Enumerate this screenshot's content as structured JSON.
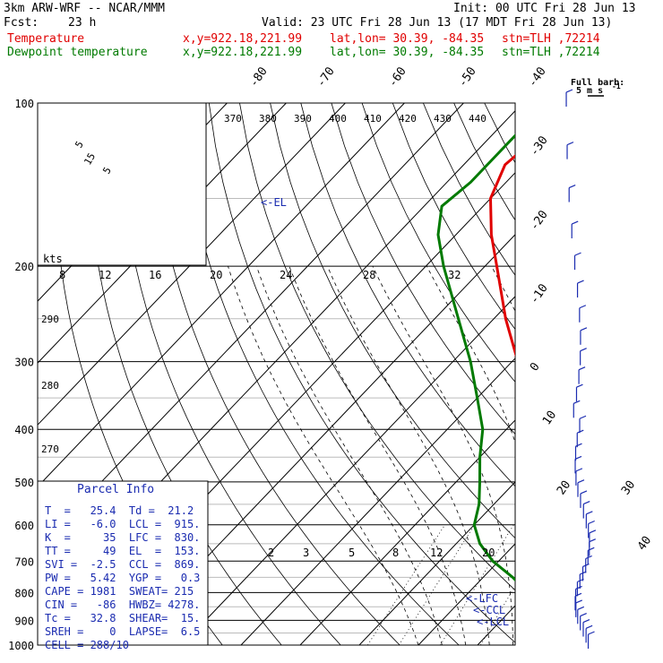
{
  "header": {
    "model": "3km ARW-WRF -- NCAR/MMM",
    "init": "Init: 00 UTC Fri 28 Jun 13",
    "fcst_label": "Fcst:",
    "fcst_value": "23 h",
    "valid": "Valid: 23 UTC Fri 28 Jun 13 (17 MDT Fri 28 Jun 13)",
    "temp_label": "Temperature",
    "dew_label": "Dewpoint temperature",
    "xy": "x,y=922.18,221.99",
    "latlon": "lat,lon= 30.39, -84.35",
    "stn": "stn=TLH ,72214"
  },
  "wind_key": {
    "line1": "Full barb:",
    "line2": "5 m s",
    "sup": "-1"
  },
  "hodograph": {
    "units": "kts",
    "rings": [
      "5",
      "15",
      "5"
    ]
  },
  "annotations": {
    "el": "<-EL",
    "lfc": "<-LFC",
    "ccl": "<-CCL",
    "lcl": "<-LCL"
  },
  "parcel": {
    "title": "Parcel Info",
    "rows": [
      "T  =   25.4  Td =  21.2",
      "LI =   -6.0  LCL =  915.",
      "K  =     35  LFC =  830.",
      "TT =     49  EL  =  153.",
      "SVI =  -2.5  CCL =  869.",
      "PW =   5.42  YGP =   0.3",
      "CAPE = 1981  SWEAT= 215",
      "CIN =   -86  HWBZ= 4278.",
      "Tc =   32.8  SHEAR=  15.",
      "SREH =    0  LAPSE=  6.5",
      "CELL = 288/10"
    ]
  },
  "colors": {
    "temperature": "#e00000",
    "dewpoint": "#007a00",
    "axes": "#000000",
    "annotation": "#1a2bb0"
  },
  "chart_data": {
    "type": "line",
    "title": "",
    "y_axis": {
      "scale": "log",
      "label": "",
      "ticks": [
        100,
        200,
        300,
        400,
        500,
        600,
        700,
        800,
        900,
        1000
      ],
      "range": [
        1000,
        100
      ]
    },
    "x_axis": {
      "scale": "skewed",
      "label": "",
      "isotherm_labels": [
        "-80",
        "-70",
        "-60",
        "-50",
        "-40",
        "-30",
        "-20",
        "-10",
        "0",
        "10",
        "20",
        "30",
        "40"
      ]
    },
    "theta_e_labels": [
      "370",
      "380",
      "390",
      "400",
      "410",
      "420",
      "430",
      "440"
    ],
    "theta_labels_left": [
      "290",
      "280",
      "270"
    ],
    "mixing_ratio_labels": [
      "2",
      "3",
      "5",
      "8",
      "12",
      "20"
    ],
    "hodo_speed_labels": [
      "8",
      "12",
      "16",
      "20",
      "24",
      "28",
      "32"
    ],
    "grid": true,
    "series": [
      {
        "name": "Temperature",
        "color": "#e00000",
        "points": [
          [
            1000,
            28
          ],
          [
            975,
            25.5
          ],
          [
            950,
            24
          ],
          [
            925,
            22
          ],
          [
            900,
            20
          ],
          [
            850,
            17
          ],
          [
            800,
            14
          ],
          [
            750,
            10.5
          ],
          [
            700,
            7.5
          ],
          [
            650,
            3.8
          ],
          [
            600,
            0.5
          ],
          [
            550,
            -3
          ],
          [
            500,
            -7
          ],
          [
            450,
            -11
          ],
          [
            400,
            -16
          ],
          [
            350,
            -22
          ],
          [
            300,
            -29
          ],
          [
            250,
            -38
          ],
          [
            200,
            -48
          ],
          [
            175,
            -54
          ],
          [
            150,
            -60
          ],
          [
            130,
            -63
          ],
          [
            115,
            -62
          ],
          [
            100,
            -60
          ]
        ]
      },
      {
        "name": "Dewpoint temperature",
        "color": "#007a00",
        "points": [
          [
            1000,
            21
          ],
          [
            975,
            23
          ],
          [
            950,
            20
          ],
          [
            925,
            18
          ],
          [
            900,
            16.5
          ],
          [
            850,
            14
          ],
          [
            800,
            10
          ],
          [
            750,
            5
          ],
          [
            700,
            -1
          ],
          [
            650,
            -6
          ],
          [
            600,
            -10
          ],
          [
            550,
            -12.5
          ],
          [
            500,
            -16
          ],
          [
            450,
            -20
          ],
          [
            400,
            -24
          ],
          [
            350,
            -30
          ],
          [
            300,
            -37
          ],
          [
            250,
            -46
          ],
          [
            200,
            -57
          ],
          [
            175,
            -63
          ],
          [
            155,
            -67
          ],
          [
            140,
            -66
          ],
          [
            125,
            -66
          ],
          [
            110,
            -66
          ],
          [
            100,
            -65
          ]
        ]
      }
    ]
  }
}
